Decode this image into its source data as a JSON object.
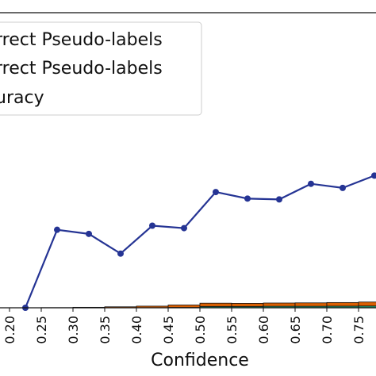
{
  "chart_data": {
    "type": "bar",
    "xlabel": "Confidence",
    "x_ticks": [
      "0.20",
      "0.25",
      "0.30",
      "0.35",
      "0.40",
      "0.45",
      "0.50",
      "0.55",
      "0.60",
      "0.65",
      "0.70",
      "0.75"
    ],
    "xlim": [
      0.18,
      0.78
    ],
    "ylim": [
      0,
      1
    ],
    "grid": false,
    "legend": {
      "position": "upper-left",
      "entries": [
        "rrect Pseudo-labels",
        "rrect Pseudo-labels",
        "uracy"
      ]
    },
    "series": [
      {
        "kind": "bar",
        "color": "#1b9e77",
        "x": [
          0.225,
          0.275,
          0.325,
          0.375,
          0.425,
          0.475,
          0.525,
          0.575,
          0.625,
          0.675,
          0.725,
          0.775
        ],
        "values": [
          0,
          0,
          0,
          0,
          0,
          0.002,
          0.008,
          0.008,
          0.009,
          0.009,
          0.01,
          0.011
        ]
      },
      {
        "kind": "bar",
        "color": "#d95f02",
        "x": [
          0.225,
          0.275,
          0.325,
          0.375,
          0.425,
          0.475,
          0.525,
          0.575,
          0.625,
          0.675,
          0.725,
          0.775
        ],
        "values": [
          0,
          0.001,
          0.003,
          0.006,
          0.01,
          0.015,
          0.02,
          0.019,
          0.02,
          0.021,
          0.022,
          0.024
        ]
      },
      {
        "kind": "line",
        "color": "#253494",
        "x": [
          0.225,
          0.275,
          0.325,
          0.375,
          0.425,
          0.475,
          0.525,
          0.575,
          0.625,
          0.675,
          0.725,
          0.775
        ],
        "values": [
          0,
          0.475,
          0.45,
          0.33,
          0.5,
          0.485,
          0.705,
          0.665,
          0.66,
          0.755,
          0.73,
          0.805
        ]
      }
    ]
  }
}
